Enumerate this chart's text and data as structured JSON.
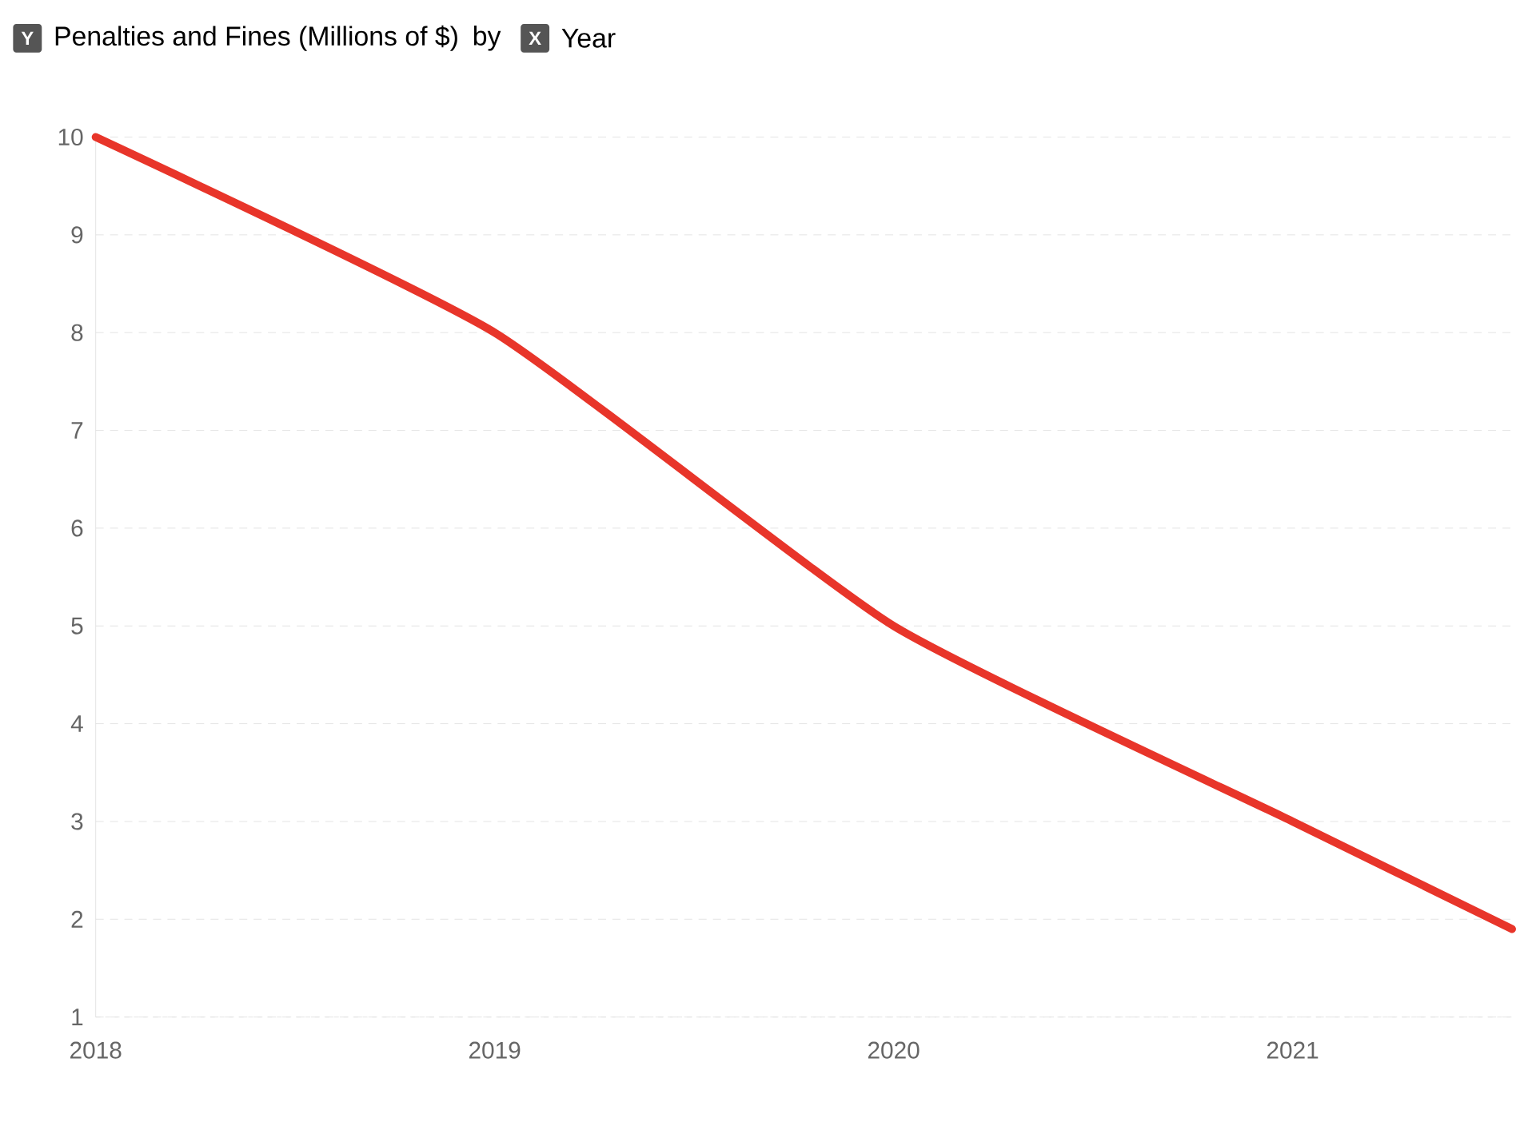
{
  "chart_data": {
    "type": "line",
    "xlabel": "Year",
    "ylabel": "Penalties and Fines (Millions of $)",
    "annotations": [
      "Y",
      "by",
      "X"
    ],
    "x": [
      2018,
      2019,
      2020,
      2021,
      2021.55
    ],
    "series": [
      {
        "color": "#e8352a",
        "values": [
          10,
          8,
          5,
          3,
          1.9
        ]
      }
    ],
    "xlim": [
      2018,
      2021.55
    ],
    "xticks": [
      2018,
      2019,
      2020,
      2021
    ],
    "ylim": [
      1,
      10
    ],
    "yticks": [
      1,
      2,
      3,
      4,
      5,
      6,
      7,
      8,
      9,
      10
    ],
    "grid": "y",
    "marker": "none",
    "line_style": "solid"
  }
}
